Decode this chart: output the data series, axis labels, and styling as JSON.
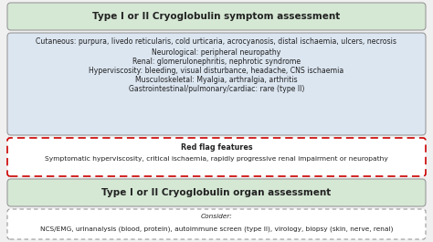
{
  "title1": "Type I or II Cryoglobulin symptom assessment",
  "title2": "Type I or II Cryoglobulin organ assessment",
  "blue_box_lines": [
    {
      "bold": "Cutaneous",
      "normal": ": purpura, livedo reticularis, cold urticaria, acrocyanosis, distal ischaemia, ulcers, necrosis"
    },
    {
      "bold": "Neurological",
      "normal": ": peripheral neuropathy"
    },
    {
      "bold": "Renal",
      "normal": ": glomerulonephritis, nephrotic syndrome"
    },
    {
      "bold": "Hyperviscosity",
      "normal": ": bleeding, visual disturbance, headache, CNS ischaemia"
    },
    {
      "bold": "Musculoskeletal",
      "normal": ": Myalgia, arthralgia, arthritis"
    },
    {
      "bold": "Gastrointestinal/pulmonary/cardiac",
      "normal": ": rare (type II)"
    }
  ],
  "red_flag_title": "Red flag features",
  "red_flag_text": "Symptomatic hyperviscosity, critical ischaemia, rapidly progressive renal impairment or neuropathy",
  "consider_label": "Consider:",
  "consider_text": "NCS/EMG, urinanalysis (blood, protein), autoimmune screen (type II), virology, biopsy (skin, nerve, renal)",
  "bg_color": "#f0f0f0",
  "title_box_color": "#d5e8d4",
  "title_box_edge": "#999999",
  "blue_box_color": "#dce6f1",
  "blue_box_edge": "#999999",
  "red_box_edge": "#cc0000",
  "gray_box_edge": "#999999",
  "title_fontsize": 7.5,
  "body_fontsize": 5.6,
  "small_fontsize": 5.3
}
